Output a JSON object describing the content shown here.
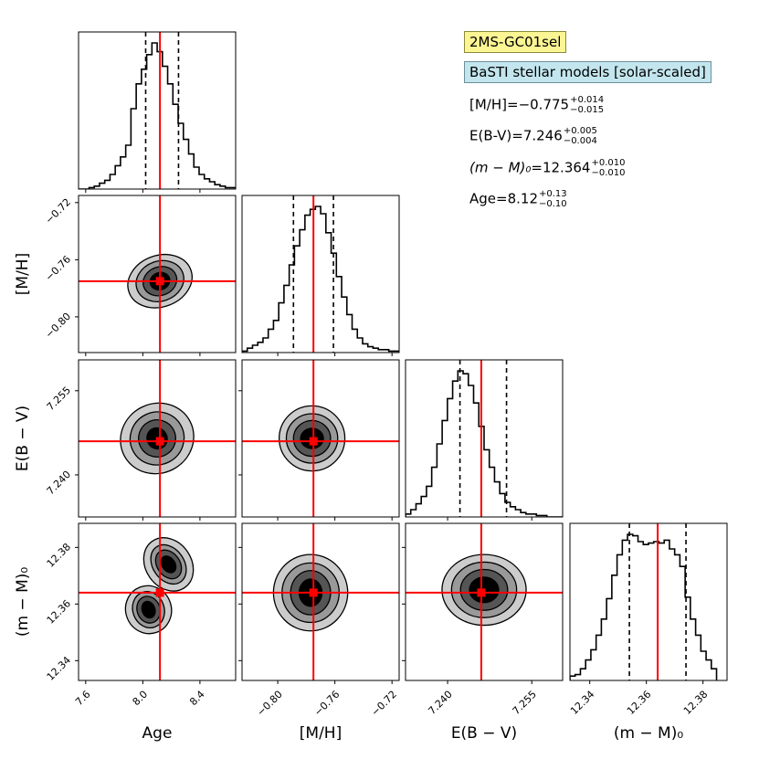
{
  "legend": {
    "run_label": "2MS-GC01sel",
    "model_label": "BaSTI stellar models [solar-scaled]"
  },
  "results": [
    {
      "name": "[M/H]",
      "value": "−0.775",
      "upper": "+0.014",
      "lower": "−0.015"
    },
    {
      "name": "E(B-V)",
      "value": "7.246",
      "upper": "+0.005",
      "lower": "−0.004"
    },
    {
      "name": "(m − M)₀",
      "value": "12.364",
      "upper": "+0.010",
      "lower": "−0.010"
    },
    {
      "name": "Age",
      "value": "8.12",
      "upper": "+0.13",
      "lower": "−0.10"
    }
  ],
  "colors": {
    "truth": "#ff0000",
    "hist": "#000000",
    "contour_outer": "#cccccc",
    "contour_mid": "#999999",
    "contour_inner": "#555555",
    "contour_core": "#000000",
    "run_badge": "#fbf593",
    "model_badge": "#c3e6ee"
  },
  "chart_data": {
    "type": "corner",
    "parameters": [
      {
        "key": "age",
        "label": "Age",
        "range": [
          7.55,
          8.65
        ],
        "ticks": [
          "7.6",
          "8.0",
          "8.4"
        ],
        "tick_values": [
          7.6,
          8.0,
          8.4
        ],
        "best": 8.12,
        "q_low": 8.02,
        "q_high": 8.25
      },
      {
        "key": "mh",
        "label": "[M/H]",
        "range": [
          -0.825,
          -0.715
        ],
        "ticks": [
          "−0.80",
          "−0.76",
          "−0.72"
        ],
        "tick_values": [
          -0.8,
          -0.76,
          -0.72
        ],
        "best": -0.775,
        "q_low": -0.789,
        "q_high": -0.761
      },
      {
        "key": "ebv",
        "label": "E(B − V)",
        "range": [
          7.2325,
          7.2605
        ],
        "ticks": [
          "7.240",
          "7.255"
        ],
        "tick_values": [
          7.24,
          7.255
        ],
        "best": 7.246,
        "q_low": 7.2422,
        "q_high": 7.2505
      },
      {
        "key": "dm",
        "label": "(m − M)₀",
        "range": [
          12.333,
          12.3885
        ],
        "ticks": [
          "12.34",
          "12.36",
          "12.38"
        ],
        "tick_values": [
          12.34,
          12.36,
          12.38
        ],
        "best": 12.364,
        "q_low": 12.354,
        "q_high": 12.374
      }
    ],
    "y_axis_labels": [
      "[M/H]",
      "E(B − V)",
      "(m − M)₀"
    ],
    "histograms": {
      "age": {
        "edges_start": 7.55,
        "bin_width": 0.0367,
        "counts": [
          0,
          0,
          1,
          2,
          4,
          6,
          10,
          16,
          22,
          30,
          55,
          72,
          82,
          92,
          100,
          94,
          84,
          72,
          58,
          45,
          34,
          24,
          15,
          10,
          7,
          5,
          3,
          2,
          1,
          1
        ]
      },
      "mh": {
        "edges_start": -0.825,
        "bin_width": 0.00367,
        "counts": [
          1,
          3,
          5,
          7,
          10,
          16,
          22,
          34,
          46,
          60,
          73,
          84,
          94,
          98,
          100,
          95,
          82,
          68,
          52,
          38,
          26,
          16,
          10,
          6,
          4,
          3,
          2,
          2,
          1,
          1
        ]
      },
      "ebv": {
        "edges_start": 7.2325,
        "bin_width": 0.000933,
        "counts": [
          2,
          5,
          9,
          14,
          21,
          34,
          50,
          66,
          81,
          93,
          100,
          98,
          90,
          78,
          62,
          46,
          34,
          24,
          16,
          10,
          7,
          5,
          3,
          2,
          2,
          1,
          1,
          0,
          0,
          0
        ]
      },
      "dm": {
        "edges_start": 12.333,
        "bin_width": 0.00185,
        "counts": [
          3,
          4,
          8,
          14,
          21,
          31,
          42,
          56,
          72,
          86,
          96,
          100,
          99,
          95,
          93,
          94,
          95,
          94,
          96,
          90,
          86,
          78,
          57,
          42,
          31,
          20,
          14,
          8
        ]
      }
    },
    "contour_levels": [
      "outer",
      "mid",
      "inner",
      "core"
    ],
    "pairs": [
      {
        "x": "age",
        "y": "mh",
        "blobs": [
          {
            "cx": 8.12,
            "cy": -0.775,
            "rx": [
              0.23,
              0.17,
              0.12,
              0.07
            ],
            "ry": [
              0.018,
              0.014,
              0.01,
              0.006
            ],
            "rot": -20
          }
        ]
      },
      {
        "x": "age",
        "y": "ebv",
        "blobs": [
          {
            "cx": 8.1,
            "cy": 7.2465,
            "rx": [
              0.26,
              0.19,
              0.13,
              0.07
            ],
            "ry": [
              0.0062,
              0.0047,
              0.0033,
              0.0019
            ],
            "rot": -28
          }
        ]
      },
      {
        "x": "mh",
        "y": "ebv",
        "blobs": [
          {
            "cx": -0.776,
            "cy": 7.2465,
            "rx": [
              0.023,
              0.018,
              0.013,
              0.008
            ],
            "ry": [
              0.0058,
              0.0044,
              0.0032,
              0.0018
            ],
            "rot": 0
          }
        ]
      },
      {
        "x": "age",
        "y": "dm",
        "blobs": [
          {
            "cx": 8.18,
            "cy": 12.374,
            "rx": [
              0.16,
              0.11,
              0.08,
              0.045
            ],
            "ry": [
              0.01,
              0.0075,
              0.0055,
              0.0032
            ],
            "rot": -35
          },
          {
            "cx": 8.04,
            "cy": 12.358,
            "rx": [
              0.16,
              0.11,
              0.08,
              0.045
            ],
            "ry": [
              0.0085,
              0.0065,
              0.0048,
              0.003
            ],
            "rot": -20
          }
        ]
      },
      {
        "x": "mh",
        "y": "dm",
        "blobs": [
          {
            "cx": -0.777,
            "cy": 12.364,
            "rx": [
              0.026,
              0.02,
              0.014,
              0.008
            ],
            "ry": [
              0.0135,
              0.0105,
              0.0078,
              0.0048
            ],
            "rot": 0
          }
        ]
      },
      {
        "x": "ebv",
        "y": "dm",
        "blobs": [
          {
            "cx": 7.2465,
            "cy": 12.365,
            "rx": [
              0.0075,
              0.0058,
              0.0042,
              0.0026
            ],
            "ry": [
              0.0125,
              0.0098,
              0.0072,
              0.0045
            ],
            "rot": 0
          }
        ]
      }
    ],
    "truth_lines": true,
    "grid": false
  }
}
